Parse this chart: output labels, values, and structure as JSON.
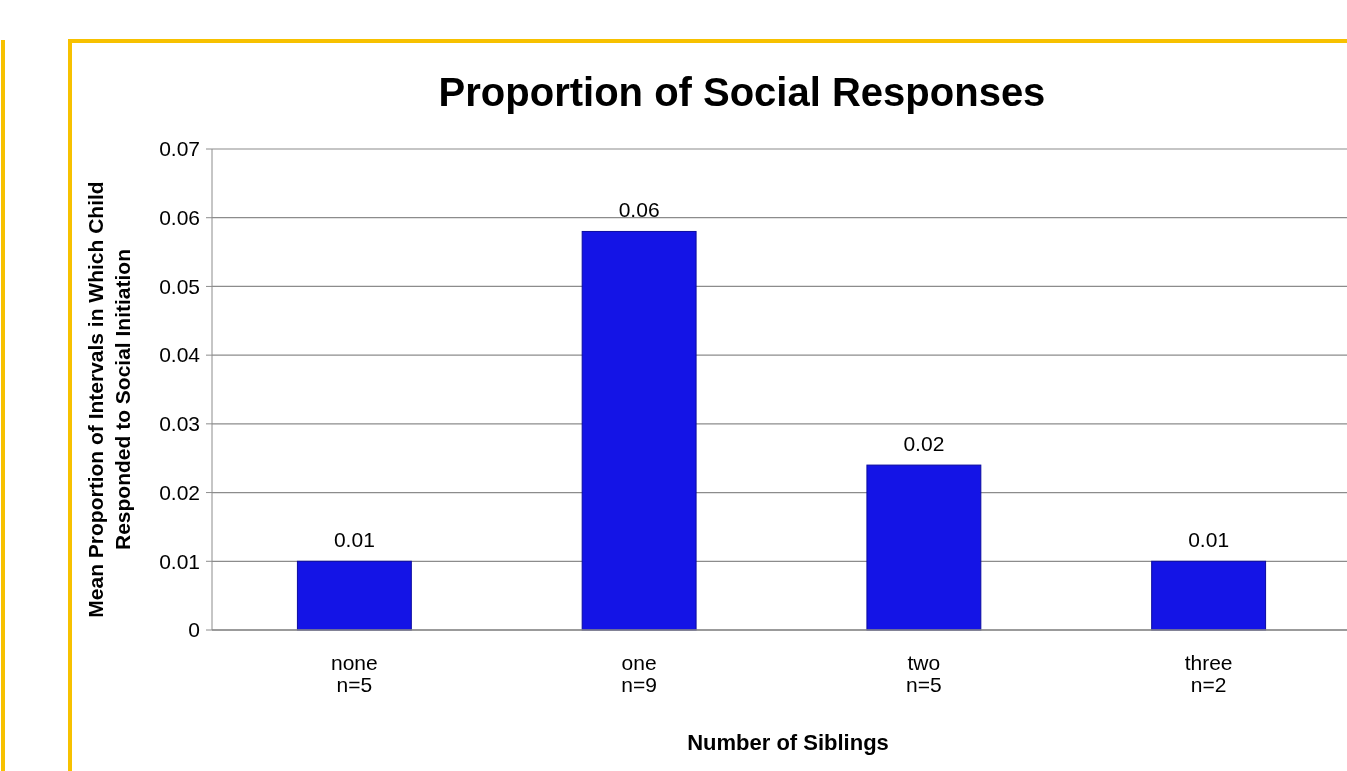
{
  "chart_data": {
    "type": "bar",
    "title": "Proportion of Social Responses",
    "xlabel": "Number of Siblings",
    "ylabel": "Mean Proportion of Intervals in Which Child\nResponded to Social Initiation",
    "categories": [
      "none\nn=5",
      "one\nn=9",
      "two\nn=5",
      "three\nn=2"
    ],
    "values": [
      0.01,
      0.058,
      0.024,
      0.01
    ],
    "value_labels": [
      "0.01",
      "0.06",
      "0.02",
      "0.01"
    ],
    "color": "#1414e6",
    "ylim": [
      0,
      0.07
    ],
    "yticks": [
      {
        "value": 0,
        "label": "0"
      },
      0.01,
      0.02,
      0.03,
      0.04,
      0.05,
      0.06,
      0.07
    ],
    "grid": "y"
  }
}
